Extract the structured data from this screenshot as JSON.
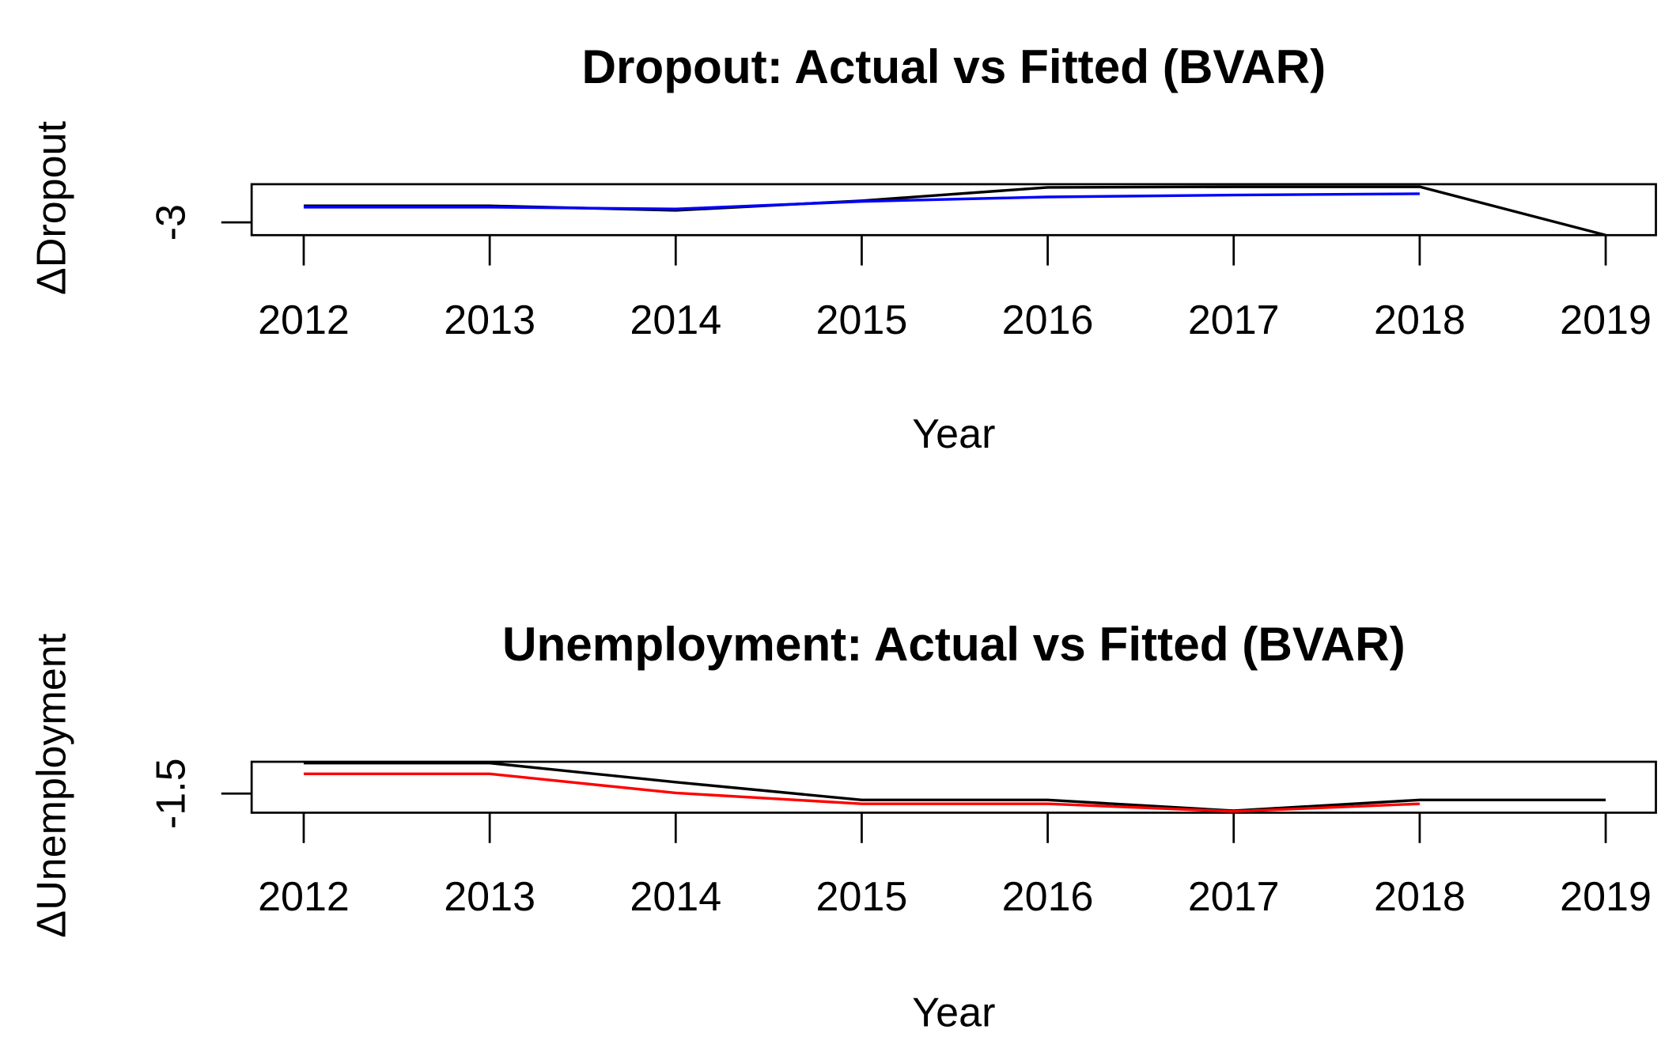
{
  "chart_data": [
    {
      "type": "line",
      "title": "Dropout: Actual vs Fitted (BVAR)",
      "x_label": "Year",
      "y_label": "ΔDropout",
      "x": [
        2012,
        2013,
        2014,
        2015,
        2016,
        2017,
        2018,
        2019
      ],
      "series": [
        {
          "name": "Actual",
          "color": "#000000",
          "values": [
            -2.74,
            -2.74,
            -2.81,
            -2.66,
            -2.45,
            -2.44,
            -2.44,
            -3.2
          ]
        },
        {
          "name": "Fitted",
          "color": "#0000ff",
          "values": [
            -2.76,
            -2.76,
            -2.79,
            -2.67,
            -2.6,
            -2.57,
            -2.55,
            null
          ]
        }
      ],
      "xlim": [
        2011.72,
        2019.27
      ],
      "xticks": [
        2012,
        2013,
        2014,
        2015,
        2016,
        2017,
        2018,
        2019
      ],
      "ylim": [
        -3.2,
        -2.4
      ],
      "yticks": [
        -3
      ]
    },
    {
      "type": "line",
      "title": "Unemployment: Actual vs Fitted (BVAR)",
      "x_label": "Year",
      "y_label": "ΔUnemployment",
      "x": [
        2012,
        2013,
        2014,
        2015,
        2016,
        2017,
        2018,
        2019
      ],
      "series": [
        {
          "name": "Actual",
          "color": "#000000",
          "values": [
            -1.02,
            -1.02,
            -1.32,
            -1.6,
            -1.6,
            -1.77,
            -1.6,
            -1.6
          ]
        },
        {
          "name": "Fitted",
          "color": "#ff0000",
          "values": [
            -1.19,
            -1.19,
            -1.49,
            -1.66,
            -1.66,
            -1.78,
            -1.66,
            null
          ]
        }
      ],
      "xlim": [
        2011.72,
        2019.27
      ],
      "xticks": [
        2012,
        2013,
        2014,
        2015,
        2016,
        2017,
        2018,
        2019
      ],
      "ylim": [
        -1.8,
        -1.0
      ],
      "yticks": [
        -1.5
      ]
    }
  ]
}
